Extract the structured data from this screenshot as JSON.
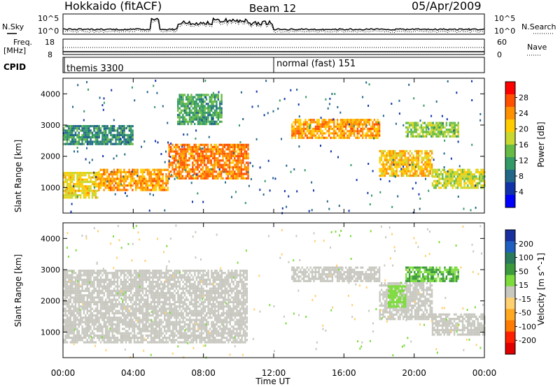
{
  "header": {
    "site_title": "Hokkaido (fitACF)",
    "beam_label": "Beam 12",
    "date_label": "05/Apr/2009"
  },
  "summary": {
    "nsky_label": "N.Sky",
    "nsearch_label": "N.Search",
    "noise_ticks_left": [
      "10^5",
      "10^0"
    ],
    "noise_ticks_right": [
      "10^5",
      "10^0"
    ],
    "freq_label": "Freq.",
    "freq_unit": "[MHz]",
    "freq_ticks": [
      "18",
      "8"
    ],
    "nave_label": "Nave",
    "nave_ticks": [
      "60",
      "0"
    ],
    "cpid_label": "CPID",
    "cpid_modes": [
      {
        "name": "themis 3300",
        "start_hour": 0
      },
      {
        "name": "normal (fast) 151",
        "start_hour": 12
      }
    ]
  },
  "axes": {
    "ylabel": "Slant Range [km]",
    "xlabel": "Time UT",
    "x_ticks": [
      "00:00",
      "04:00",
      "08:00",
      "12:00",
      "16:00",
      "20:00",
      "00:00"
    ],
    "y_ticks": [
      "1000",
      "2000",
      "3000",
      "4000"
    ]
  },
  "power_colorbar": {
    "label": "Power [dB]",
    "ticks": [
      "28",
      "24",
      "20",
      "16",
      "12",
      "8",
      "4"
    ],
    "colors": [
      "#ff0000",
      "#ff5000",
      "#ff9000",
      "#ffcc00",
      "#c8d830",
      "#66bb44",
      "#339966",
      "#226688",
      "#1133aa",
      "#0000ff"
    ]
  },
  "velocity_colorbar": {
    "label": "Velocity [m s^-1]",
    "ticks": [
      "200",
      "100",
      "50",
      "15",
      "-15",
      "-50",
      "-100",
      "-200"
    ],
    "colors": [
      "#1a2f9e",
      "#1e5fbf",
      "#2a7a5c",
      "#3c9a3c",
      "#7ddc3c",
      "#c8c8c0",
      "#ffd070",
      "#ffa820",
      "#ff7a00",
      "#ff2000",
      "#e00000"
    ]
  },
  "chart_data": {
    "type": "heatmap",
    "x_range_hours": [
      0,
      24
    ],
    "y_range_km": [
      180,
      4500
    ],
    "panels": [
      {
        "name": "power",
        "bands": [
          {
            "t0": 0,
            "t1": 2,
            "lo": 700,
            "hi": 1500,
            "value": 20
          },
          {
            "t0": 2,
            "t1": 6,
            "lo": 900,
            "hi": 1600,
            "value": 24
          },
          {
            "t0": 6,
            "t1": 10.5,
            "lo": 1300,
            "hi": 2400,
            "value": 26
          },
          {
            "t0": 0,
            "t1": 4,
            "lo": 2400,
            "hi": 3000,
            "value": 10
          },
          {
            "t0": 6.5,
            "t1": 9,
            "lo": 3000,
            "hi": 4000,
            "value": 12
          },
          {
            "t0": 13,
            "t1": 18,
            "lo": 2600,
            "hi": 3200,
            "value": 24
          },
          {
            "t0": 18,
            "t1": 21,
            "lo": 1400,
            "hi": 2200,
            "value": 22
          },
          {
            "t0": 21,
            "t1": 24,
            "lo": 1000,
            "hi": 1600,
            "value": 18
          },
          {
            "t0": 19.5,
            "t1": 22.5,
            "lo": 2600,
            "hi": 3100,
            "value": 16
          }
        ]
      },
      {
        "name": "velocity",
        "bands": [
          {
            "t0": 0,
            "t1": 10.5,
            "lo": 700,
            "hi": 3000,
            "value": 0
          },
          {
            "t0": 13,
            "t1": 18,
            "lo": 2600,
            "hi": 3100,
            "value": 0
          },
          {
            "t0": 18,
            "t1": 21,
            "lo": 1400,
            "hi": 2600,
            "value": 0
          },
          {
            "t0": 18.5,
            "t1": 19.5,
            "lo": 1800,
            "hi": 2500,
            "value": 30
          },
          {
            "t0": 19.5,
            "t1": 22.5,
            "lo": 2600,
            "hi": 3100,
            "value": 60
          },
          {
            "t0": 21,
            "t1": 24,
            "lo": 900,
            "hi": 1600,
            "value": 0
          }
        ]
      }
    ]
  }
}
